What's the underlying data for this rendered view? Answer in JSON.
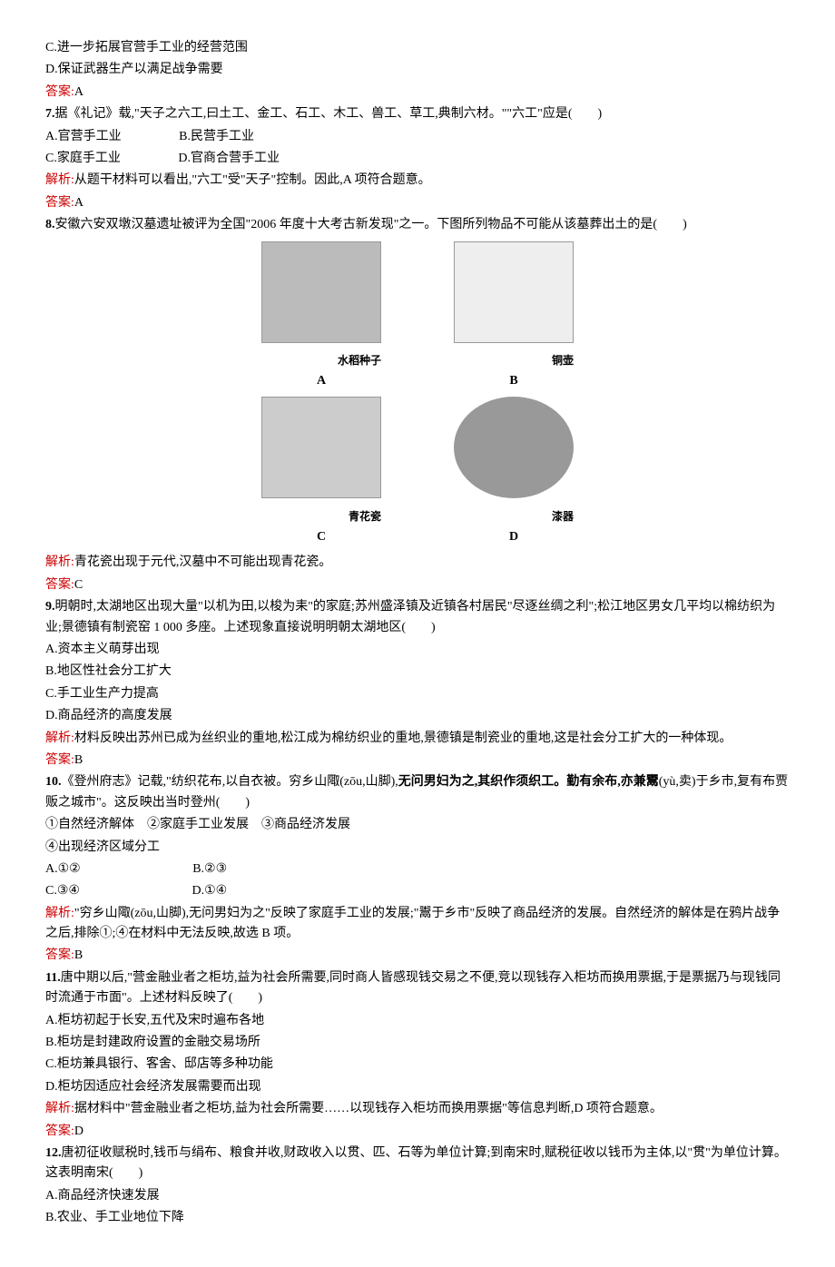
{
  "q6": {
    "optC": "C.进一步拓展官营手工业的经营范围",
    "optD": "D.保证武器生产以满足战争需要",
    "ansLabel": "答案:",
    "ans": "A"
  },
  "q7": {
    "stem": "据《礼记》载,\"天子之六工,曰土工、金工、石工、木工、兽工、草工,典制六材。\"\"六工\"应是(　　)",
    "optA": "A.官营手工业",
    "optB": "B.民营手工业",
    "optC": "C.家庭手工业",
    "optD": "D.官商合营手工业",
    "expLabel": "解析:",
    "exp": "从题干材料可以看出,\"六工\"受\"天子\"控制。因此,A 项符合题意。",
    "ansLabel": "答案:",
    "ans": "A"
  },
  "q8": {
    "stem": "安徽六安双墩汉墓遗址被评为全国\"2006 年度十大考古新发现\"之一。下图所列物品不可能从该墓葬出土的是(　　)",
    "capA_right": "水稻种子",
    "capB_right": "铜壶",
    "capC_right": "青花瓷",
    "capD_right": "漆器",
    "labelA": "A",
    "labelB": "B",
    "labelC": "C",
    "labelD": "D",
    "expLabel": "解析:",
    "exp": "青花瓷出现于元代,汉墓中不可能出现青花瓷。",
    "ansLabel": "答案:",
    "ans": "C"
  },
  "q9": {
    "stem": "明朝时,太湖地区出现大量\"以机为田,以梭为耒\"的家庭;苏州盛泽镇及近镇各村居民\"尽逐丝绸之利\";松江地区男女几平均以棉纺织为业;景德镇有制瓷窑 1 000 多座。上述现象直接说明明朝太湖地区(　　)",
    "optA": "A.资本主义萌芽出现",
    "optB": "B.地区性社会分工扩大",
    "optC": "C.手工业生产力提高",
    "optD": "D.商品经济的高度发展",
    "expLabel": "解析:",
    "exp": "材料反映出苏州已成为丝织业的重地,松江成为棉纺织业的重地,景德镇是制瓷业的重地,这是社会分工扩大的一种体现。",
    "ansLabel": "答案:",
    "ans": "B"
  },
  "q10": {
    "stem1": "《登州府志》记载,\"纺织花布,以自衣被。穷乡山陬(zōu,山脚),",
    "stem1b": "无问男妇为之,其织作须织工。勤有余布,亦兼鬻",
    "stem2": "(yù,卖)于乡市,复有布贾贩之城市\"。这反映出当时登州(　　)",
    "line1": "①自然经济解体　②家庭手工业发展　③商品经济发展",
    "line2": "④出现经济区域分工",
    "optA": "A.①②",
    "optB": "B.②③",
    "optC": "C.③④",
    "optD": "D.①④",
    "expLabel": "解析:",
    "exp": "\"穷乡山陬(zōu,山脚),无问男妇为之\"反映了家庭手工业的发展;\"鬻于乡市\"反映了商品经济的发展。自然经济的解体是在鸦片战争之后,排除①;④在材料中无法反映,故选 B 项。",
    "ansLabel": "答案:",
    "ans": "B"
  },
  "q11": {
    "stem": "唐中期以后,\"营金融业者之柜坊,益为社会所需要,同时商人皆感现钱交易之不便,竞以现钱存入柜坊而换用票据,于是票据乃与现钱同时流通于市面\"。上述材料反映了(　　)",
    "optA": "A.柜坊初起于长安,五代及宋时遍布各地",
    "optB": "B.柜坊是封建政府设置的金融交易场所",
    "optC": "C.柜坊兼具银行、客舍、邸店等多种功能",
    "optD": "D.柜坊因适应社会经济发展需要而出现",
    "expLabel": "解析:",
    "exp": "据材料中\"营金融业者之柜坊,益为社会所需要……以现钱存入柜坊而换用票据\"等信息判断,D 项符合题意。",
    "ansLabel": "答案:",
    "ans": "D"
  },
  "q12": {
    "stem": "唐初征收赋税时,钱币与绢布、粮食并收,财政收入以贯、匹、石等为单位计算;到南宋时,赋税征收以钱币为主体,以\"贯\"为单位计算。这表明南宋(　　)",
    "optA": "A.商品经济快速发展",
    "optB": "B.农业、手工业地位下降"
  }
}
